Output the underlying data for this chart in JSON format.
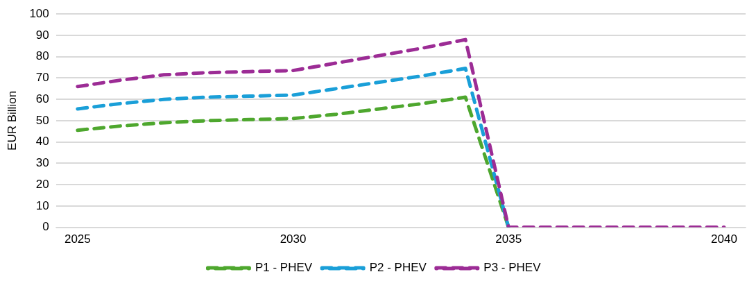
{
  "chart_data": {
    "type": "line",
    "ylabel": "EUR Billion",
    "categories": [
      "2025",
      null,
      null,
      null,
      null,
      "2030",
      null,
      null,
      null,
      null,
      "2035",
      null,
      null,
      null,
      null,
      "2040"
    ],
    "series": [
      {
        "name": "P1 - PHEV",
        "color": "#4ea72e",
        "values": [
          45.5,
          47.5,
          49,
          50,
          50.5,
          51,
          53,
          55.5,
          58,
          61,
          0,
          null,
          null,
          null,
          null,
          null
        ]
      },
      {
        "name": "P2 - PHEV",
        "color": "#1a9fd8",
        "values": [
          55.5,
          58,
          60,
          61,
          61.5,
          62,
          65,
          68,
          71,
          74.5,
          0,
          null,
          null,
          null,
          null,
          null
        ]
      },
      {
        "name": "P3 - PHEV",
        "color": "#9c2c95",
        "values": [
          66,
          69,
          71.5,
          72.5,
          73,
          73.5,
          77,
          80.5,
          84,
          88,
          0,
          0,
          0,
          0,
          0,
          0
        ]
      }
    ],
    "ylim": [
      0,
      100
    ],
    "yticks": [
      0,
      10,
      20,
      30,
      40,
      50,
      60,
      70,
      80,
      90,
      100
    ],
    "grid": "y",
    "legend": "bottom",
    "line_style": "dashed",
    "marker": "none"
  }
}
